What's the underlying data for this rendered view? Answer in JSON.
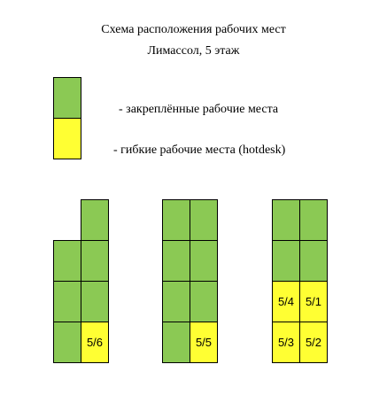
{
  "header": {
    "title": "Схема расположения рабочих мест",
    "subtitle": "Лимассол, 5 этаж"
  },
  "legend": {
    "fixed": {
      "label": "- закреплённые рабочие места",
      "color": "#8bc954"
    },
    "flexible": {
      "label": "- гибкие рабочие места (hotdesk)",
      "color": "#ffff33"
    }
  },
  "desks": {
    "block1": {
      "hotdesk_label": "5/6"
    },
    "block2": {
      "hotdesk_label": "5/5"
    },
    "block3": {
      "hotdesk_labels": [
        "5/4",
        "5/1",
        "5/3",
        "5/2"
      ]
    }
  }
}
